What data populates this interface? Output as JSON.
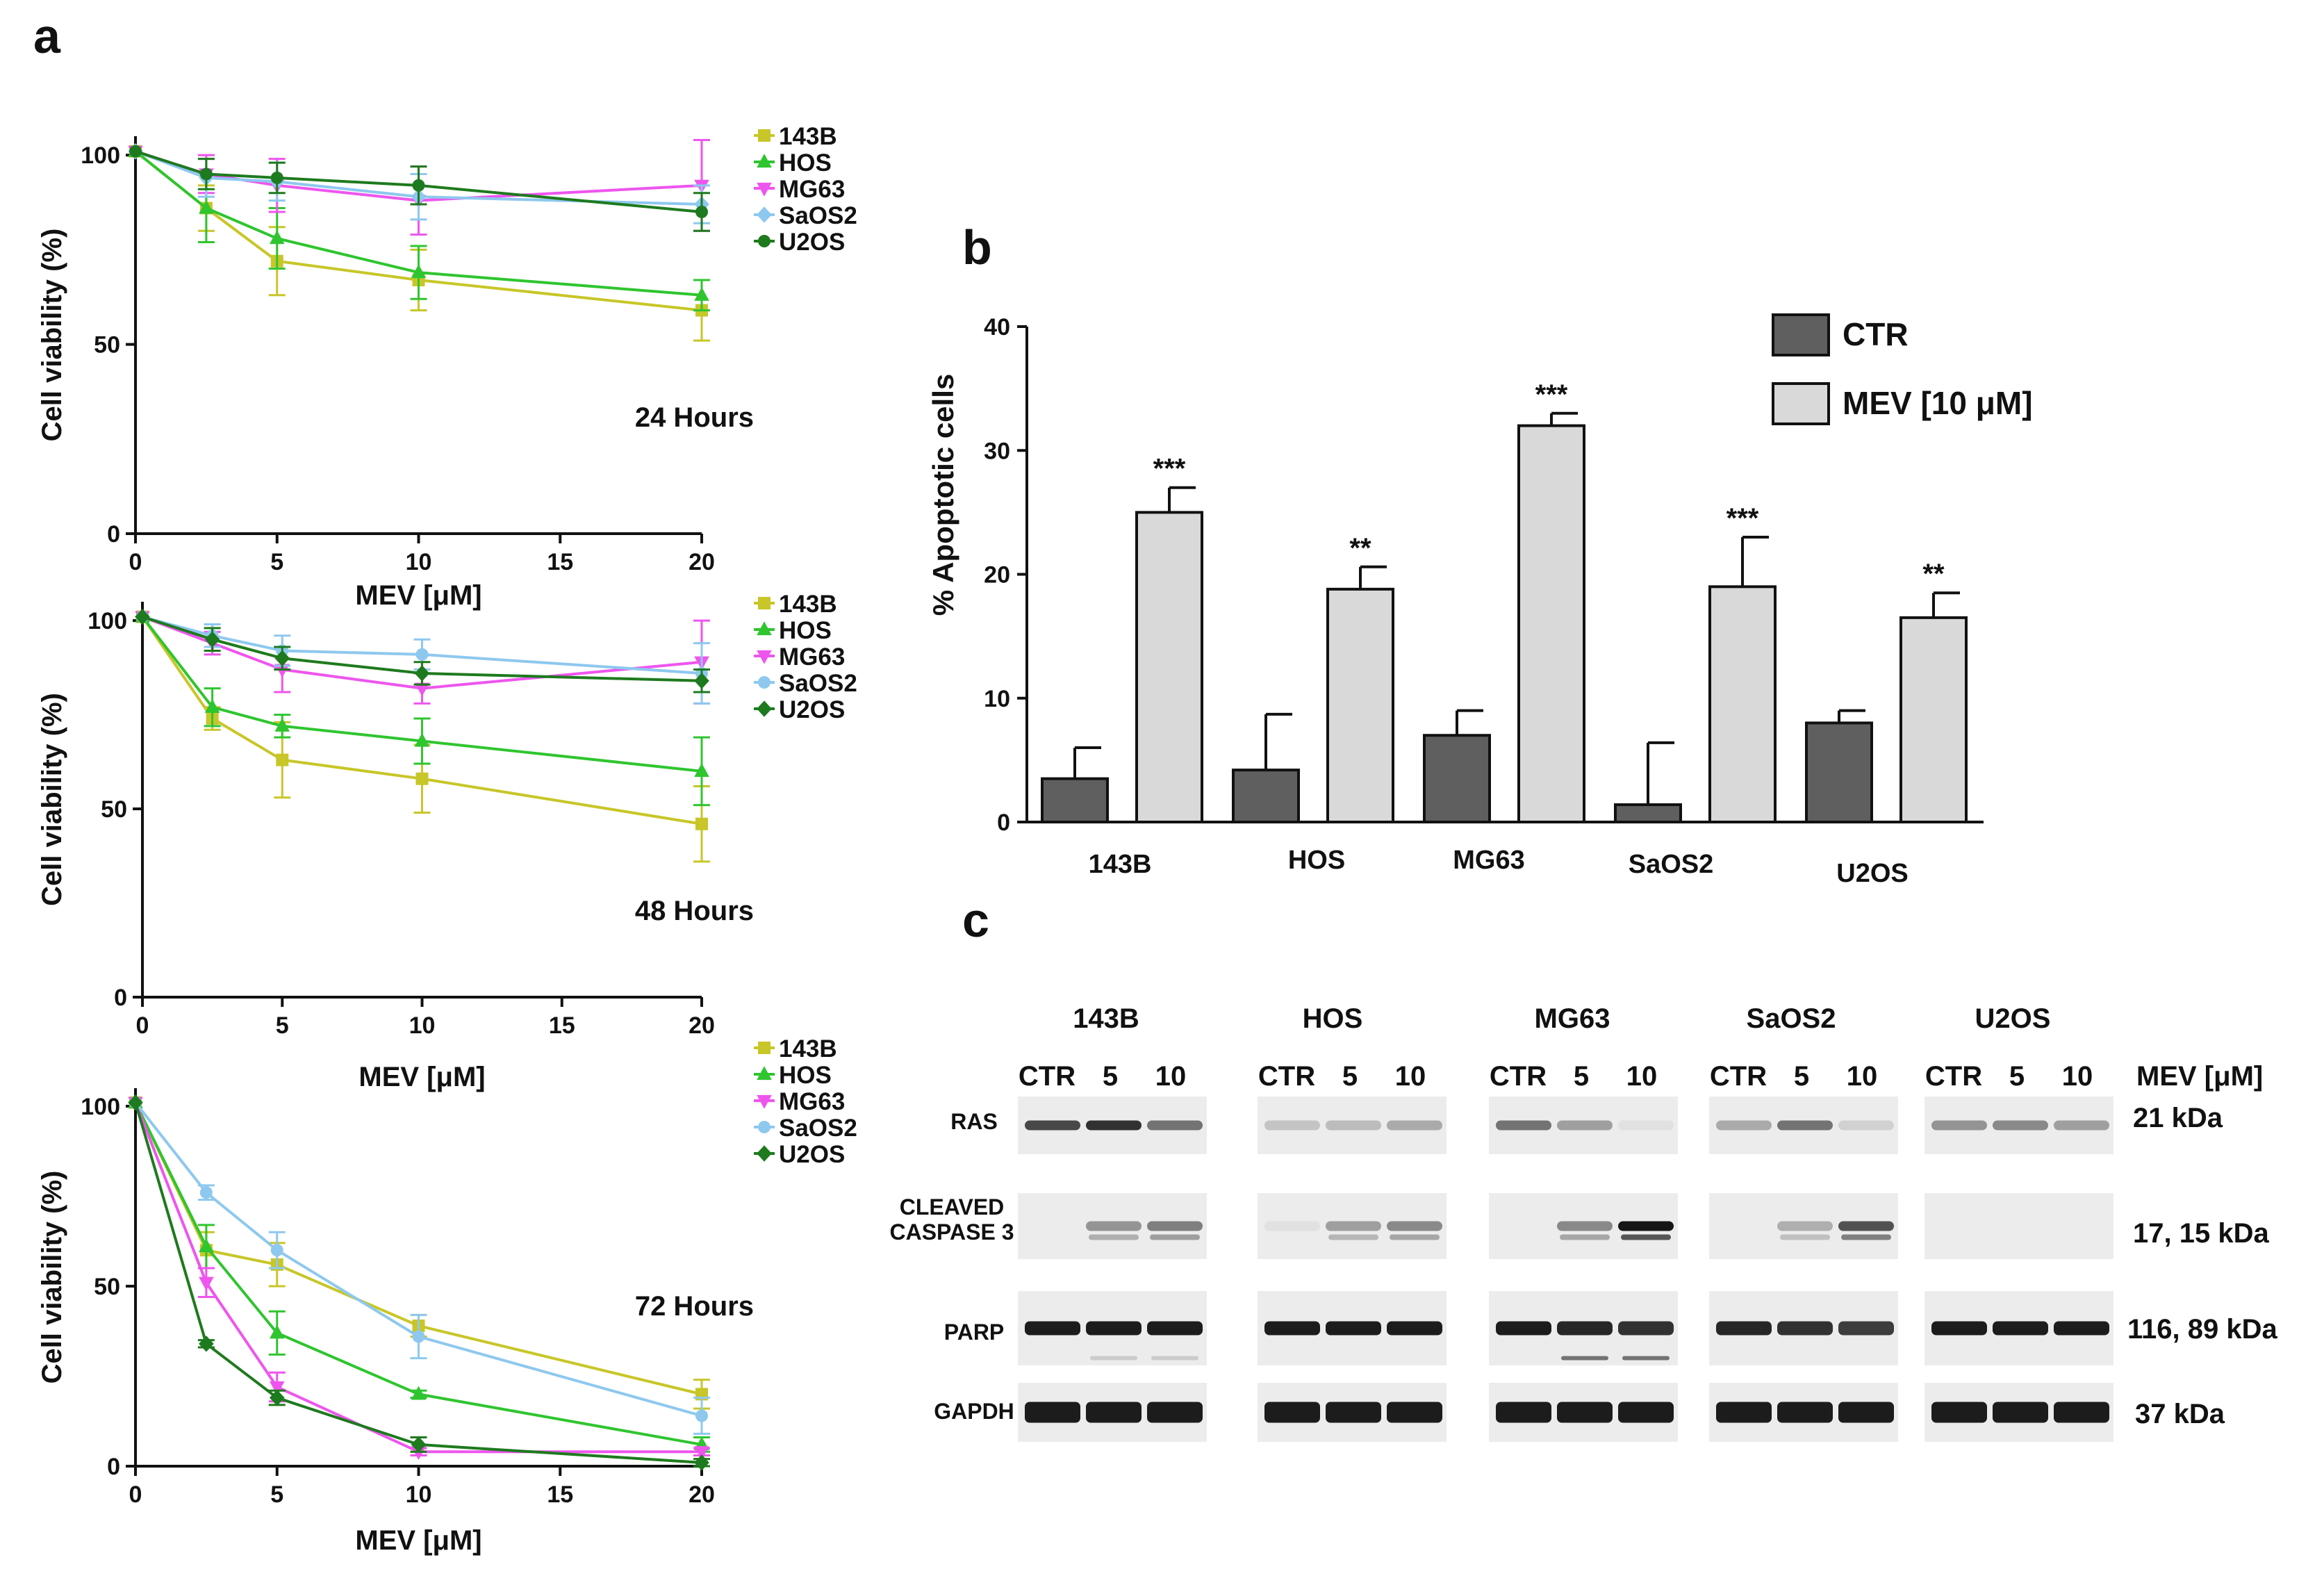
{
  "panel_labels": {
    "a": "a",
    "b": "b",
    "c": "c"
  },
  "colors": {
    "143B": "#c8c628",
    "HOS": "#2fc52f",
    "MG63": "#ee55ee",
    "SaOS2": "#8ec8ee",
    "U2OS": "#1e7a1e",
    "ctr_bar": "#5f5f5f",
    "mev_bar": "#d9d9d9",
    "axis": "#111111"
  },
  "chart_data": [
    {
      "type": "line",
      "id": "viability_24h",
      "annotation": "24 Hours",
      "xlabel": "MEV [μM]",
      "ylabel": "Cell viability (%)",
      "xlim": [
        0,
        20
      ],
      "ylim": [
        0,
        105
      ],
      "xticks": [
        0,
        5,
        10,
        15,
        20
      ],
      "yticks": [
        0,
        50,
        100
      ],
      "x": [
        0,
        2.5,
        5,
        10,
        20
      ],
      "legend": [
        "143B",
        "HOS",
        "MG63",
        "SaOS2",
        "U2OS"
      ],
      "series": [
        {
          "name": "143B",
          "marker": "square",
          "values": [
            101,
            86,
            72,
            67,
            59
          ],
          "errors": [
            0,
            6,
            9,
            8,
            8
          ]
        },
        {
          "name": "HOS",
          "marker": "triangle-up",
          "values": [
            101,
            86,
            78,
            69,
            63
          ],
          "errors": [
            0,
            9,
            8,
            7,
            4
          ]
        },
        {
          "name": "MG63",
          "marker": "triangle-down",
          "values": [
            101,
            95,
            92,
            88,
            92
          ],
          "errors": [
            0,
            5,
            7,
            9,
            12
          ]
        },
        {
          "name": "SaOS2",
          "marker": "diamond",
          "values": [
            101,
            94,
            93,
            89,
            87
          ],
          "errors": [
            0,
            5,
            5,
            6,
            5
          ]
        },
        {
          "name": "U2OS",
          "marker": "circle",
          "values": [
            101,
            95,
            94,
            92,
            85
          ],
          "errors": [
            0,
            4,
            4,
            5,
            5
          ]
        }
      ]
    },
    {
      "type": "line",
      "id": "viability_48h",
      "annotation": "48 Hours",
      "xlabel": "MEV [μM]",
      "ylabel": "Cell viability (%)",
      "xlim": [
        0,
        20
      ],
      "ylim": [
        0,
        105
      ],
      "xticks": [
        0,
        5,
        10,
        15,
        20
      ],
      "yticks": [
        0,
        50,
        100
      ],
      "x": [
        0,
        2.5,
        5,
        10,
        20
      ],
      "legend": [
        "143B",
        "HOS",
        "MG63",
        "SaOS2",
        "U2OS"
      ],
      "series": [
        {
          "name": "143B",
          "marker": "square",
          "values": [
            101,
            74,
            63,
            58,
            46
          ],
          "errors": [
            0,
            3,
            10,
            9,
            10
          ]
        },
        {
          "name": "HOS",
          "marker": "triangle-up",
          "values": [
            101,
            77,
            72,
            68,
            60
          ],
          "errors": [
            0,
            5,
            3,
            6,
            9
          ]
        },
        {
          "name": "MG63",
          "marker": "triangle-down",
          "values": [
            101,
            94,
            87,
            82,
            89
          ],
          "errors": [
            0,
            3,
            6,
            4,
            11
          ]
        },
        {
          "name": "SaOS2",
          "marker": "circle",
          "values": [
            101,
            96,
            92,
            91,
            86
          ],
          "errors": [
            0,
            3,
            4,
            4,
            8
          ]
        },
        {
          "name": "U2OS",
          "marker": "diamond",
          "values": [
            101,
            95,
            90,
            86,
            84
          ],
          "errors": [
            0,
            3,
            3,
            3,
            3
          ]
        }
      ]
    },
    {
      "type": "line",
      "id": "viability_72h",
      "annotation": "72 Hours",
      "xlabel": "MEV [μM]",
      "ylabel": "Cell viability (%)",
      "xlim": [
        0,
        20
      ],
      "ylim": [
        0,
        105
      ],
      "xticks": [
        0,
        5,
        10,
        15,
        20
      ],
      "yticks": [
        0,
        50,
        100
      ],
      "x": [
        0,
        2.5,
        5,
        10,
        20
      ],
      "legend": [
        "143B",
        "HOS",
        "MG63",
        "SaOS2",
        "U2OS"
      ],
      "series": [
        {
          "name": "143B",
          "marker": "square",
          "values": [
            101,
            60,
            56,
            39,
            20
          ],
          "errors": [
            0,
            5,
            6,
            3,
            4
          ]
        },
        {
          "name": "HOS",
          "marker": "triangle-up",
          "values": [
            101,
            61,
            37,
            20,
            6
          ],
          "errors": [
            0,
            6,
            6,
            1,
            2
          ]
        },
        {
          "name": "MG63",
          "marker": "triangle-down",
          "values": [
            101,
            51,
            22,
            4,
            4
          ],
          "errors": [
            0,
            4,
            4,
            1,
            1
          ]
        },
        {
          "name": "SaOS2",
          "marker": "circle",
          "values": [
            101,
            76,
            60,
            36,
            14
          ],
          "errors": [
            0,
            2,
            5,
            6,
            5
          ]
        },
        {
          "name": "U2OS",
          "marker": "diamond",
          "values": [
            101,
            34,
            19,
            6,
            1
          ],
          "errors": [
            0,
            1,
            2,
            2,
            1
          ]
        }
      ]
    },
    {
      "type": "bar",
      "id": "apoptosis",
      "ylabel": "% Apoptotic cells",
      "xlabel": "",
      "ylim": [
        0,
        40
      ],
      "yticks": [
        0,
        10,
        20,
        30,
        40
      ],
      "categories": [
        "143B",
        "HOS",
        "MG63",
        "SaOS2",
        "U2OS"
      ],
      "series": [
        {
          "name": "CTR",
          "values": [
            3.5,
            4.2,
            7,
            1.4,
            8
          ],
          "errors": [
            2.5,
            4.5,
            2,
            5,
            1
          ],
          "significance": [
            "",
            "",
            "",
            "",
            ""
          ]
        },
        {
          "name": "MEV [10 μM]",
          "values": [
            25,
            18.8,
            32,
            19,
            16.5
          ],
          "errors": [
            2,
            1.8,
            1,
            4,
            2
          ],
          "significance": [
            "***",
            "**",
            "***",
            "***",
            "**"
          ]
        }
      ]
    }
  ],
  "western_blot": {
    "cell_lines": [
      "143B",
      "HOS",
      "MG63",
      "SaOS2",
      "U2OS"
    ],
    "lanes": [
      "CTR",
      "5",
      "10"
    ],
    "lanes_unit": "MEV [μM]",
    "rows": [
      {
        "label": "RAS",
        "kda": "21 kDa"
      },
      {
        "label": "CLEAVED",
        "label2": "CASPASE 3",
        "kda": "17, 15 kDa"
      },
      {
        "label": "PARP",
        "kda": "116, 89 kDa"
      },
      {
        "label": "GAPDH",
        "kda": "37 kDa"
      }
    ]
  }
}
